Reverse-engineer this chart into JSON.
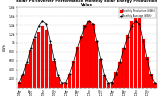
{
  "title": "Solar PV/Inverter Performance Monthly Solar Energy Production Value",
  "title_fontsize": 2.8,
  "bar_color": "#FF0000",
  "avg_line_color": "#000000",
  "background_color": "#FFFFFF",
  "plot_bg_color": "#FFFFFF",
  "ylabel": "kWh",
  "ylabel_fontsize": 2.5,
  "xlabel_fontsize": 2.0,
  "ylim": [
    0,
    1800
  ],
  "yticks": [
    200,
    400,
    600,
    800,
    1000,
    1200,
    1400,
    1600,
    1800
  ],
  "ytick_labels": [
    "200",
    "400",
    "600",
    "800",
    "1k",
    "1.2k",
    "1.4k",
    "1.6k",
    "1.8k"
  ],
  "months_short": [
    "J",
    "F",
    "M",
    "A",
    "M",
    "J",
    "J",
    "A",
    "S",
    "O",
    "N",
    "D",
    "J",
    "F",
    "M",
    "A",
    "M",
    "J",
    "J",
    "A",
    "S",
    "O",
    "N",
    "D",
    "J",
    "F",
    "M",
    "A",
    "M",
    "J",
    "J",
    "A",
    "S",
    "O",
    "N",
    "D"
  ],
  "xtick_labels": [
    "Jan\n'10",
    "",
    "",
    "Apr\n'10",
    "",
    "",
    "Jul\n'10",
    "",
    "",
    "Oct\n'10",
    "",
    "",
    "Jan\n'11",
    "",
    "",
    "Apr\n'11",
    "",
    "",
    "Jul\n'11",
    "",
    "",
    "Oct\n'11",
    "",
    "",
    "Jan\n'12",
    "",
    "",
    "Apr\n'12",
    "",
    "",
    "Jul\n'12",
    "",
    "",
    "Oct\n'12",
    "",
    ""
  ],
  "values": [
    120,
    280,
    520,
    850,
    1100,
    1250,
    1380,
    1300,
    980,
    600,
    250,
    90,
    100,
    310,
    600,
    900,
    1150,
    1400,
    1500,
    1420,
    1050,
    650,
    280,
    100,
    130,
    350,
    580,
    880,
    1180,
    1480,
    1600,
    1550,
    1100,
    680,
    300,
    110
  ],
  "avg_values": [
    117,
    313,
    567,
    877,
    1143,
    1377,
    1493,
    1423,
    1043,
    643,
    277,
    100,
    117,
    313,
    567,
    877,
    1143,
    1377,
    1493,
    1423,
    1043,
    643,
    277,
    100,
    117,
    313,
    567,
    877,
    1143,
    1377,
    1493,
    1423,
    1043,
    643,
    277,
    100
  ],
  "legend_labels": [
    "Monthly Production (kWh)",
    "Monthly Average (kWh)"
  ],
  "grid_color": "#CCCCCC",
  "tick_fontsize": 2.2,
  "bar_width": 0.85
}
